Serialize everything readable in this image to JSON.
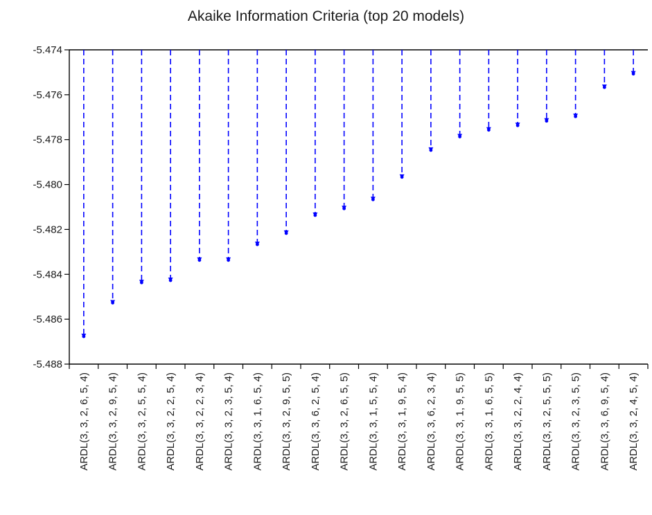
{
  "chart_data": {
    "type": "scatter",
    "title": "Akaike Information Criteria (top 20 models)",
    "xlabel": "",
    "ylabel": "",
    "ylim": [
      -5.488,
      -5.474
    ],
    "yticks": [
      -5.474,
      -5.476,
      -5.478,
      -5.48,
      -5.482,
      -5.484,
      -5.486,
      -5.488
    ],
    "ytick_labels": [
      "-5.474",
      "-5.476",
      "-5.478",
      "-5.480",
      "-5.482",
      "-5.484",
      "-5.486",
      "-5.488"
    ],
    "grid": false,
    "line_style": "dashed-drop-from-top",
    "series_color": "#0000ff",
    "categories": [
      "ARDL(3, 3, 2, 6, 5, 4)",
      "ARDL(3, 3, 2, 9, 5, 4)",
      "ARDL(3, 3, 2, 5, 5, 4)",
      "ARDL(3, 3, 2, 2, 5, 4)",
      "ARDL(3, 3, 2, 2, 3, 4)",
      "ARDL(3, 3, 2, 3, 5, 4)",
      "ARDL(3, 3, 1, 6, 5, 4)",
      "ARDL(3, 3, 2, 9, 5, 5)",
      "ARDL(3, 3, 6, 2, 5, 4)",
      "ARDL(3, 3, 2, 6, 5, 5)",
      "ARDL(3, 3, 1, 5, 5, 4)",
      "ARDL(3, 3, 1, 9, 5, 4)",
      "ARDL(3, 3, 6, 2, 3, 4)",
      "ARDL(3, 3, 1, 9, 5, 5)",
      "ARDL(3, 3, 1, 6, 5, 5)",
      "ARDL(3, 3, 2, 2, 4, 4)",
      "ARDL(3, 3, 2, 5, 5, 5)",
      "ARDL(3, 3, 2, 3, 5, 5)",
      "ARDL(3, 3, 6, 9, 5, 4)",
      "ARDL(3, 3, 2, 4, 5, 4)"
    ],
    "values": [
      -5.4868,
      -5.4853,
      -5.4844,
      -5.4843,
      -5.4834,
      -5.4834,
      -5.4827,
      -5.4822,
      -5.4814,
      -5.4811,
      -5.4807,
      -5.4797,
      -5.4785,
      -5.4779,
      -5.4776,
      -5.4774,
      -5.4772,
      -5.477,
      -5.4757,
      -5.4751
    ]
  }
}
